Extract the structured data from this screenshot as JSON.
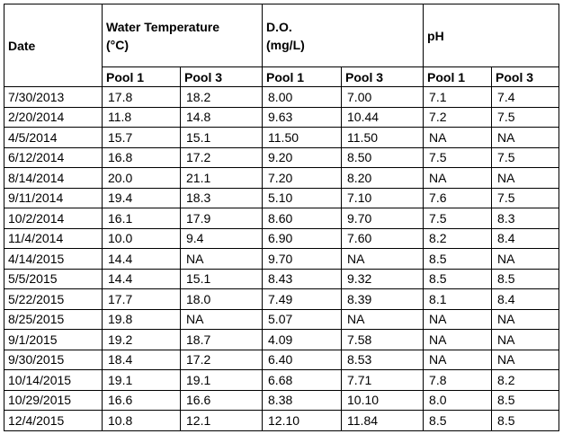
{
  "table": {
    "date_header": "Date",
    "groups": [
      {
        "key": "temp",
        "line1": "Water Temperature",
        "line2": "(°C)"
      },
      {
        "key": "do",
        "line1": "D.O.",
        "line2": "(mg/L)"
      },
      {
        "key": "ph",
        "line1": "pH",
        "line2": ""
      }
    ],
    "subheaders": [
      "Pool 1",
      "Pool 3",
      "Pool 1",
      "Pool 3",
      "Pool 1",
      "Pool 3"
    ],
    "rows": [
      {
        "date": "7/30/2013",
        "cells": [
          "17.8",
          "18.2",
          "8.00",
          "7.00",
          "7.1",
          "7.4"
        ]
      },
      {
        "date": "2/20/2014",
        "cells": [
          "11.8",
          "14.8",
          "9.63",
          "10.44",
          "7.2",
          "7.5"
        ]
      },
      {
        "date": "4/5/2014",
        "cells": [
          "15.7",
          "15.1",
          "11.50",
          "11.50",
          "NA",
          "NA"
        ]
      },
      {
        "date": "6/12/2014",
        "cells": [
          "16.8",
          "17.2",
          "9.20",
          "8.50",
          "7.5",
          "7.5"
        ]
      },
      {
        "date": "8/14/2014",
        "cells": [
          "20.0",
          "21.1",
          "7.20",
          "8.20",
          "NA",
          "NA"
        ]
      },
      {
        "date": "9/11/2014",
        "cells": [
          "19.4",
          "18.3",
          "5.10",
          "7.10",
          "7.6",
          "7.5"
        ]
      },
      {
        "date": "10/2/2014",
        "cells": [
          "16.1",
          "17.9",
          "8.60",
          "9.70",
          "7.5",
          "8.3"
        ]
      },
      {
        "date": "11/4/2014",
        "cells": [
          "10.0",
          "9.4",
          "6.90",
          "7.60",
          "8.2",
          "8.4"
        ]
      },
      {
        "date": "4/14/2015",
        "cells": [
          "14.4",
          "NA",
          "9.70",
          "NA",
          "8.5",
          "NA"
        ]
      },
      {
        "date": "5/5/2015",
        "cells": [
          "14.4",
          "15.1",
          "8.43",
          "9.32",
          "8.5",
          "8.5"
        ]
      },
      {
        "date": "5/22/2015",
        "cells": [
          "17.7",
          "18.0",
          "7.49",
          "8.39",
          "8.1",
          "8.4"
        ]
      },
      {
        "date": "8/25/2015",
        "cells": [
          "19.8",
          "NA",
          "5.07",
          "NA",
          "NA",
          "NA"
        ]
      },
      {
        "date": "9/1/2015",
        "cells": [
          "19.2",
          "18.7",
          "4.09",
          "7.58",
          "NA",
          "NA"
        ]
      },
      {
        "date": "9/30/2015",
        "cells": [
          "18.4",
          "17.2",
          "6.40",
          "8.53",
          "NA",
          "NA"
        ]
      },
      {
        "date": "10/14/2015",
        "cells": [
          "19.1",
          "19.1",
          "6.68",
          "7.71",
          "7.8",
          "8.2"
        ]
      },
      {
        "date": "10/29/2015",
        "cells": [
          "16.6",
          "16.6",
          "8.38",
          "10.10",
          "8.0",
          "8.5"
        ]
      },
      {
        "date": "12/4/2015",
        "cells": [
          "10.8",
          "12.1",
          "12.10",
          "11.84",
          "8.5",
          "8.5"
        ]
      }
    ]
  }
}
